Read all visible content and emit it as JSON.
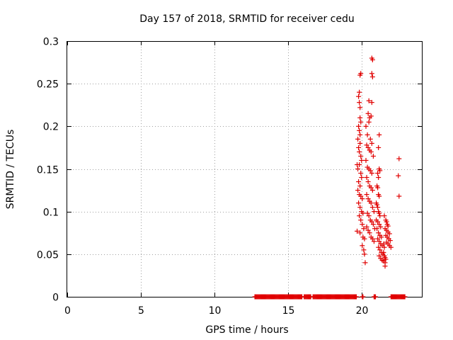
{
  "chart_data": {
    "type": "scatter",
    "title": "Day 157 of 2018, SRMTID for receiver cedu",
    "xlabel": "GPS time / hours",
    "ylabel": "SRMTID / TECUs",
    "xlim": [
      0,
      24.1
    ],
    "ylim": [
      0,
      0.3
    ],
    "xticks": [
      0,
      5,
      10,
      15,
      20
    ],
    "yticks": [
      0,
      0.05,
      0.1,
      0.15,
      0.2,
      0.25,
      0.3
    ],
    "xtick_labels": [
      "0",
      "5",
      "10",
      "15",
      "20"
    ],
    "ytick_labels": [
      "0",
      "0.05",
      "0.1",
      "0.15",
      "0.2",
      "0.25",
      "0.3"
    ],
    "grid": true,
    "series": [
      {
        "name": "SRMTID",
        "color": "#e00000",
        "marker": "plus",
        "zero_runs": [
          [
            12.75,
            15.95
          ],
          [
            16.1,
            16.55
          ],
          [
            16.7,
            19.65
          ],
          [
            20.05,
            20.1
          ],
          [
            20.85,
            20.95
          ],
          [
            22.0,
            22.95
          ]
        ],
        "points": [
          [
            19.9,
            0.26
          ],
          [
            19.95,
            0.262
          ],
          [
            19.85,
            0.24
          ],
          [
            19.8,
            0.235
          ],
          [
            19.85,
            0.228
          ],
          [
            19.9,
            0.222
          ],
          [
            19.8,
            0.2
          ],
          [
            19.9,
            0.21
          ],
          [
            19.95,
            0.205
          ],
          [
            19.85,
            0.195
          ],
          [
            19.9,
            0.19
          ],
          [
            19.75,
            0.185
          ],
          [
            19.8,
            0.175
          ],
          [
            19.85,
            0.17
          ],
          [
            19.9,
            0.18
          ],
          [
            19.95,
            0.165
          ],
          [
            20.0,
            0.16
          ],
          [
            19.7,
            0.155
          ],
          [
            19.75,
            0.15
          ],
          [
            19.85,
            0.155
          ],
          [
            19.95,
            0.145
          ],
          [
            20.0,
            0.14
          ],
          [
            19.8,
            0.135
          ],
          [
            19.9,
            0.13
          ],
          [
            19.75,
            0.125
          ],
          [
            19.85,
            0.12
          ],
          [
            19.95,
            0.118
          ],
          [
            20.05,
            0.115
          ],
          [
            19.8,
            0.11
          ],
          [
            19.9,
            0.105
          ],
          [
            20.0,
            0.1
          ],
          [
            20.1,
            0.098
          ],
          [
            19.85,
            0.095
          ],
          [
            19.95,
            0.09
          ],
          [
            20.05,
            0.085
          ],
          [
            20.15,
            0.08
          ],
          [
            19.7,
            0.077
          ],
          [
            19.9,
            0.075
          ],
          [
            20.1,
            0.07
          ],
          [
            20.2,
            0.068
          ],
          [
            20.05,
            0.06
          ],
          [
            20.15,
            0.055
          ],
          [
            20.2,
            0.05
          ],
          [
            20.25,
            0.04
          ],
          [
            20.7,
            0.28
          ],
          [
            20.75,
            0.278
          ],
          [
            20.7,
            0.262
          ],
          [
            20.75,
            0.258
          ],
          [
            20.5,
            0.23
          ],
          [
            20.7,
            0.228
          ],
          [
            20.45,
            0.215
          ],
          [
            20.55,
            0.21
          ],
          [
            20.65,
            0.212
          ],
          [
            20.5,
            0.205
          ],
          [
            20.3,
            0.2
          ],
          [
            20.4,
            0.19
          ],
          [
            20.6,
            0.185
          ],
          [
            20.7,
            0.18
          ],
          [
            20.35,
            0.178
          ],
          [
            20.45,
            0.175
          ],
          [
            20.55,
            0.172
          ],
          [
            20.65,
            0.17
          ],
          [
            20.8,
            0.165
          ],
          [
            20.3,
            0.16
          ],
          [
            20.4,
            0.152
          ],
          [
            20.5,
            0.15
          ],
          [
            20.6,
            0.148
          ],
          [
            20.7,
            0.145
          ],
          [
            20.35,
            0.14
          ],
          [
            20.45,
            0.135
          ],
          [
            20.55,
            0.13
          ],
          [
            20.65,
            0.128
          ],
          [
            20.75,
            0.125
          ],
          [
            20.35,
            0.12
          ],
          [
            20.45,
            0.115
          ],
          [
            20.55,
            0.112
          ],
          [
            20.65,
            0.11
          ],
          [
            20.75,
            0.105
          ],
          [
            20.85,
            0.1
          ],
          [
            20.4,
            0.098
          ],
          [
            20.5,
            0.095
          ],
          [
            20.6,
            0.09
          ],
          [
            20.7,
            0.088
          ],
          [
            20.8,
            0.085
          ],
          [
            20.9,
            0.08
          ],
          [
            20.35,
            0.082
          ],
          [
            20.45,
            0.078
          ],
          [
            20.55,
            0.075
          ],
          [
            20.65,
            0.07
          ],
          [
            20.75,
            0.068
          ],
          [
            20.85,
            0.065
          ],
          [
            21.2,
            0.19
          ],
          [
            21.15,
            0.175
          ],
          [
            21.2,
            0.15
          ],
          [
            21.25,
            0.148
          ],
          [
            21.1,
            0.145
          ],
          [
            21.15,
            0.14
          ],
          [
            21.05,
            0.13
          ],
          [
            21.1,
            0.128
          ],
          [
            21.15,
            0.12
          ],
          [
            21.2,
            0.118
          ],
          [
            21.0,
            0.11
          ],
          [
            21.05,
            0.108
          ],
          [
            21.1,
            0.105
          ],
          [
            21.15,
            0.1
          ],
          [
            21.2,
            0.098
          ],
          [
            21.25,
            0.095
          ],
          [
            21.0,
            0.09
          ],
          [
            21.1,
            0.088
          ],
          [
            21.2,
            0.085
          ],
          [
            21.3,
            0.082
          ],
          [
            21.05,
            0.08
          ],
          [
            21.15,
            0.075
          ],
          [
            21.25,
            0.072
          ],
          [
            21.35,
            0.07
          ],
          [
            21.1,
            0.068
          ],
          [
            21.2,
            0.065
          ],
          [
            21.3,
            0.062
          ],
          [
            21.4,
            0.06
          ],
          [
            21.15,
            0.058
          ],
          [
            21.25,
            0.055
          ],
          [
            21.35,
            0.052
          ],
          [
            21.45,
            0.05
          ],
          [
            21.2,
            0.048
          ],
          [
            21.3,
            0.045
          ],
          [
            21.4,
            0.043
          ],
          [
            21.5,
            0.042
          ],
          [
            21.6,
            0.04
          ],
          [
            21.6,
            0.036
          ],
          [
            21.55,
            0.095
          ],
          [
            21.65,
            0.09
          ],
          [
            21.7,
            0.088
          ],
          [
            21.75,
            0.085
          ],
          [
            21.8,
            0.083
          ],
          [
            21.6,
            0.08
          ],
          [
            21.7,
            0.078
          ],
          [
            21.8,
            0.076
          ],
          [
            21.9,
            0.074
          ],
          [
            21.65,
            0.072
          ],
          [
            21.75,
            0.07
          ],
          [
            21.85,
            0.068
          ],
          [
            21.95,
            0.066
          ],
          [
            21.7,
            0.064
          ],
          [
            21.8,
            0.062
          ],
          [
            21.9,
            0.06
          ],
          [
            22.0,
            0.058
          ],
          [
            21.5,
            0.062
          ],
          [
            21.55,
            0.058
          ],
          [
            21.5,
            0.052
          ],
          [
            21.55,
            0.048
          ],
          [
            21.6,
            0.046
          ],
          [
            21.65,
            0.044
          ],
          [
            22.55,
            0.162
          ],
          [
            22.5,
            0.142
          ],
          [
            22.55,
            0.118
          ]
        ]
      }
    ]
  }
}
